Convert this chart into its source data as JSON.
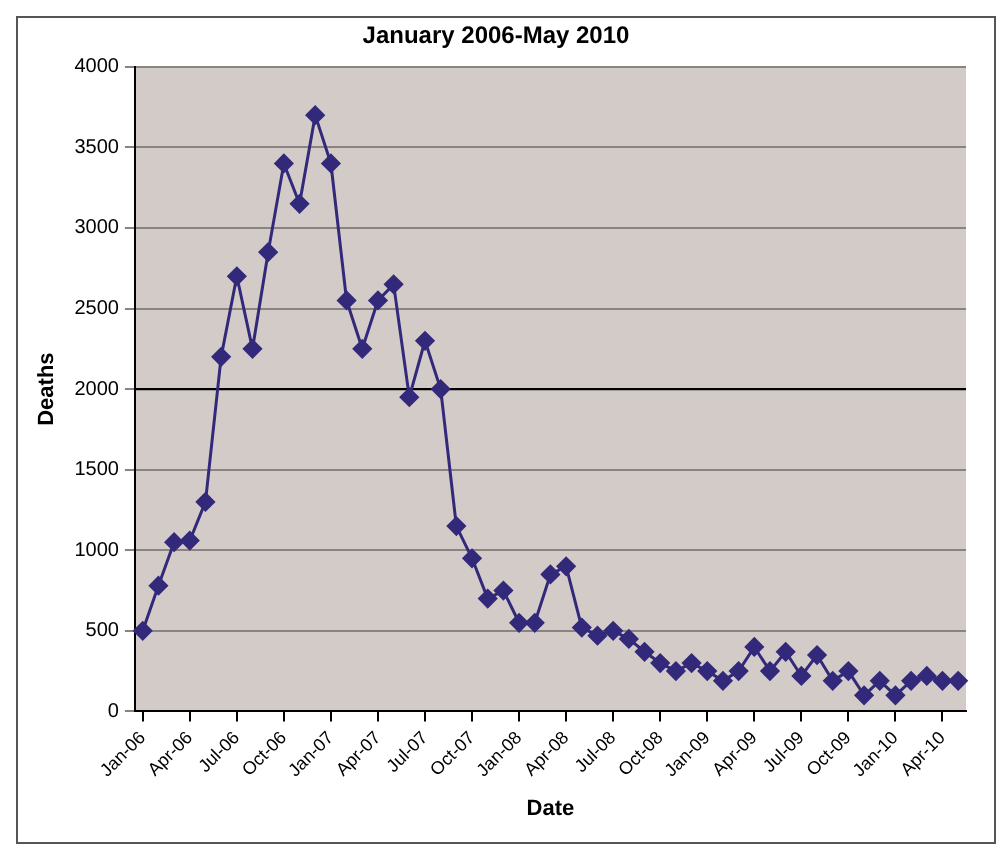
{
  "chart_data": {
    "type": "line",
    "title": "January 2006-May 2010",
    "xlabel": "Date",
    "ylabel": "Deaths",
    "categories": [
      "Jan-06",
      null,
      null,
      "Apr-06",
      null,
      null,
      "Jul-06",
      null,
      null,
      "Oct-06",
      null,
      null,
      "Jan-07",
      null,
      null,
      "Apr-07",
      null,
      null,
      "Jul-07",
      null,
      null,
      "Oct-07",
      null,
      null,
      "Jan-08",
      null,
      null,
      "Apr-08",
      null,
      null,
      "Jul-08",
      null,
      null,
      "Oct-08",
      null,
      null,
      "Jan-09",
      null,
      null,
      "Apr-09",
      null,
      null,
      "Jul-09",
      null,
      null,
      "Oct-09",
      null,
      null,
      "Jan-10",
      null,
      null,
      "Apr-10",
      null
    ],
    "series": [
      {
        "color": "#33297a",
        "values": [
          500,
          780,
          1050,
          1060,
          1300,
          2200,
          2700,
          2250,
          2850,
          3400,
          3150,
          3700,
          3400,
          2550,
          2250,
          2550,
          2650,
          1950,
          2300,
          2000,
          1150,
          950,
          700,
          750,
          550,
          550,
          850,
          900,
          520,
          470,
          500,
          450,
          370,
          300,
          250,
          300,
          250,
          190,
          250,
          400,
          250,
          370,
          220,
          350,
          190,
          250,
          100,
          190,
          100,
          190,
          220,
          190,
          190
        ]
      }
    ],
    "ylim": [
      0,
      4000
    ],
    "yticks": [
      0,
      500,
      1000,
      1500,
      2000,
      2500,
      3000,
      3500,
      4000
    ],
    "grid": "y",
    "ref_lines": [
      {
        "axis": "y",
        "value": 2000,
        "color": "#000000"
      }
    ],
    "legend": false,
    "marker": "diamond",
    "line_style": "solid"
  }
}
